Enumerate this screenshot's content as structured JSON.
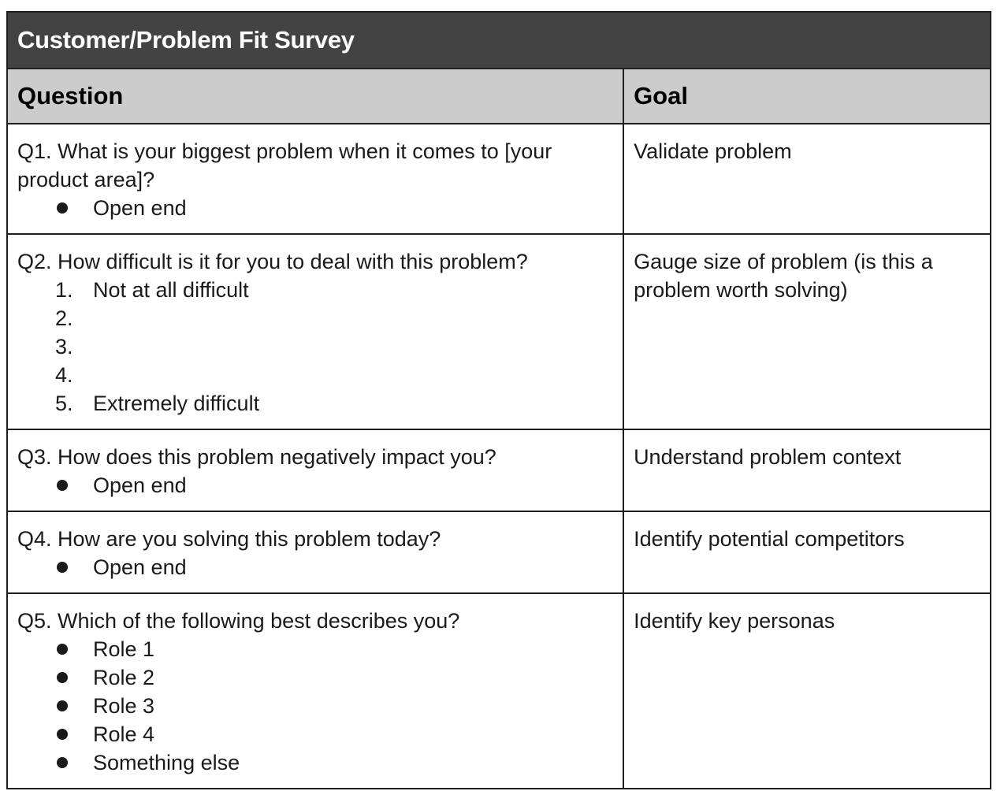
{
  "survey": {
    "title": "Customer/Problem Fit Survey",
    "headers": {
      "question": "Question",
      "goal": "Goal"
    },
    "rows": [
      {
        "question": "Q1. What is your biggest problem when it comes to [your product area]?",
        "list_type": "bullet",
        "options": [
          "Open end"
        ],
        "goal": "Validate problem"
      },
      {
        "question": "Q2. How difficult is it for you to deal with this problem?",
        "list_type": "numbered",
        "options": [
          "Not at all difficult",
          "",
          "",
          "",
          "Extremely difficult"
        ],
        "numbers": [
          "1.",
          "2.",
          "3.",
          "4.",
          "5."
        ],
        "goal": "Gauge size of problem (is this a problem worth solving)"
      },
      {
        "question": "Q3. How does this problem negatively impact you?",
        "list_type": "bullet",
        "options": [
          "Open end"
        ],
        "goal": "Understand problem context"
      },
      {
        "question": "Q4. How are you solving this problem today?",
        "list_type": "bullet",
        "options": [
          "Open end"
        ],
        "goal": "Identify potential competitors"
      },
      {
        "question": "Q5. Which of the following best describes you?",
        "list_type": "bullet",
        "options": [
          "Role 1",
          "Role 2",
          "Role 3",
          "Role 4",
          "Something else"
        ],
        "goal": "Identify key personas"
      }
    ]
  }
}
